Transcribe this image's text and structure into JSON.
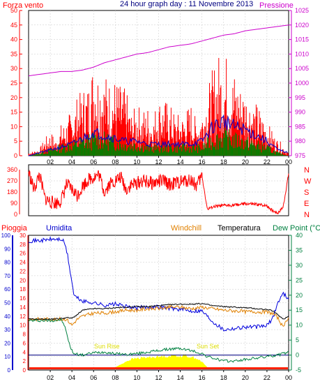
{
  "header": {
    "left_label": "Forza vento",
    "title": "24 hour graph day : 11 Novembre 2013",
    "right_label": "Pressione"
  },
  "legend_bottom": {
    "pioggia": "Pioggia",
    "umidita": "Umidita",
    "windchill": "Windchill",
    "temperatura": "Temperatura",
    "dewpoint": "Dew Point (°C"
  },
  "annotations": {
    "sunrise": "Sun Rise",
    "sunset": "Sun Set"
  },
  "colors": {
    "wind_gust": "#ff0000",
    "wind_avg": "#008000",
    "wind_blue": "#0000cc",
    "pressure": "#cc00cc",
    "direction": "#ff0000",
    "humidity": "#0000dd",
    "windchill": "#e08000",
    "temperature": "#000000",
    "dewpoint": "#008040",
    "rain": "#ffff00",
    "left_axis": "#ff0000",
    "humidity_axis": "#0000cc",
    "dewpoint_axis": "#008040"
  },
  "chart_data": [
    {
      "type": "bar",
      "title": "24 hour graph day : 11 Novembre 2013",
      "x_ticks": [
        "02",
        "04",
        "06",
        "08",
        "10",
        "12",
        "14",
        "16",
        "18",
        "20",
        "22",
        "00"
      ],
      "x_range_hours": [
        0,
        24
      ],
      "y_left_label": "Forza vento",
      "y_left_ticks": [
        "0",
        "5",
        "10",
        "15",
        "20",
        "25",
        "30",
        "35",
        "40",
        "45",
        "50"
      ],
      "ylim_left": [
        0,
        50
      ],
      "y_right_label": "Pressione",
      "y_right_ticks": [
        "975",
        "980",
        "985",
        "990",
        "995",
        "1000",
        "1005",
        "1010",
        "1015",
        "1020",
        "1025"
      ],
      "ylim_right": [
        975,
        1025
      ],
      "gust_profile": {
        "hours": [
          0,
          1,
          1.5,
          2,
          2.5,
          3,
          3.5,
          4,
          4.5,
          5,
          5.5,
          6,
          6.5,
          7,
          7.5,
          8,
          8.5,
          9,
          9.5,
          10,
          10.5,
          11,
          11.5,
          12,
          12.5,
          13,
          13.5,
          14,
          14.5,
          15,
          15.5,
          16,
          16.5,
          17,
          17.5,
          18,
          18.5,
          19,
          19.5,
          20,
          20.5,
          21,
          21.5,
          22,
          22.5,
          23,
          23.5,
          24
        ],
        "values": [
          1,
          2,
          5,
          7,
          5,
          9,
          11,
          13,
          17,
          19,
          22,
          30,
          26,
          24,
          21,
          22,
          20,
          19,
          12,
          15,
          13,
          14,
          11,
          18,
          16,
          15,
          12,
          12,
          13,
          15,
          10,
          14,
          19,
          25,
          29,
          30,
          28,
          24,
          22,
          20,
          17,
          15,
          13,
          10,
          7,
          5,
          3,
          1
        ]
      },
      "avg_profile": {
        "hours": [
          0,
          2,
          3,
          4,
          5,
          6,
          7,
          8,
          9,
          10,
          11,
          12,
          13,
          14,
          15,
          16,
          17,
          18,
          19,
          20,
          21,
          22,
          23,
          24
        ],
        "values": [
          0,
          2,
          3,
          4,
          5,
          6,
          6,
          5,
          4,
          4,
          3,
          3,
          3,
          3,
          3,
          3,
          6,
          7,
          6,
          5,
          4,
          3,
          1,
          0
        ]
      },
      "blue_profile": {
        "hours": [
          0,
          2,
          3,
          4,
          5,
          6,
          7,
          8,
          9,
          10,
          11,
          12,
          13,
          14,
          15,
          16,
          17,
          18,
          19,
          20,
          21,
          22,
          23,
          24
        ],
        "values": [
          0,
          2,
          3,
          4,
          6,
          8,
          7,
          6,
          5,
          5,
          4,
          4,
          4,
          4,
          4,
          5,
          10,
          12,
          10,
          9,
          7,
          5,
          2,
          1
        ]
      },
      "pressure": {
        "hours": [
          0,
          1,
          2,
          3,
          4,
          5,
          6,
          7,
          8,
          9,
          10,
          11,
          12,
          13,
          14,
          15,
          16,
          17,
          18,
          19,
          20,
          21,
          22,
          23,
          24
        ],
        "values": [
          1002.5,
          1003,
          1003.5,
          1004,
          1004,
          1004.5,
          1005.5,
          1007,
          1008,
          1009,
          1010,
          1010.5,
          1011.5,
          1012.5,
          1013,
          1013.5,
          1014.5,
          1015.5,
          1016.5,
          1017,
          1018,
          1018.5,
          1019,
          1019.5,
          1020
        ]
      }
    },
    {
      "type": "line",
      "series_name": "Wind direction",
      "x_range_hours": [
        0,
        24
      ],
      "y_ticks": [
        "0",
        "90",
        "180",
        "270",
        "360"
      ],
      "y_right_ticks": [
        "N",
        "W",
        "S",
        "E",
        "N"
      ],
      "ylim": [
        0,
        360
      ],
      "direction": {
        "hours": [
          0,
          0.5,
          1,
          1.5,
          2,
          2.5,
          3,
          3.5,
          4,
          4.5,
          5,
          5.5,
          6,
          6.5,
          7,
          7.5,
          8,
          8.5,
          9,
          9.5,
          10,
          10.5,
          11,
          11.5,
          12,
          12.5,
          13,
          13.5,
          14,
          14.5,
          15,
          15.5,
          16,
          16.5,
          17,
          18,
          19,
          20,
          21,
          22,
          22.5,
          23,
          23.5,
          24
        ],
        "values": [
          340,
          200,
          320,
          130,
          100,
          90,
          110,
          240,
          200,
          150,
          230,
          280,
          300,
          320,
          180,
          250,
          270,
          300,
          200,
          240,
          250,
          270,
          260,
          250,
          265,
          270,
          240,
          250,
          260,
          270,
          280,
          230,
          310,
          40,
          60,
          70,
          75,
          85,
          80,
          70,
          30,
          10,
          60,
          330
        ]
      }
    },
    {
      "type": "line",
      "x_ticks": [
        "02",
        "04",
        "06",
        "08",
        "10",
        "12",
        "14",
        "16",
        "18",
        "20",
        "22",
        "00"
      ],
      "x_range_hours": [
        0,
        24
      ],
      "rain_ticks": [
        "0",
        "2",
        "4",
        "6",
        "8",
        "10",
        "12",
        "14",
        "16",
        "18",
        "20",
        "22",
        "24",
        "26",
        "28",
        "30"
      ],
      "humidity_ticks": [
        "0",
        "10",
        "20",
        "30",
        "40",
        "50",
        "60",
        "70",
        "80",
        "90",
        "100"
      ],
      "ylim_humidity": [
        0,
        100
      ],
      "temperature_ticks": [
        "-5",
        "0",
        "5",
        "10",
        "15",
        "20",
        "25",
        "30",
        "35",
        "40"
      ],
      "ylim_temperature": [
        -5,
        40
      ],
      "humidity": {
        "hours": [
          0,
          1,
          2,
          3,
          3.3,
          3.6,
          3.9,
          4.2,
          5,
          6,
          7,
          8,
          9,
          10,
          11,
          12,
          13,
          14,
          15,
          16,
          16.5,
          17,
          18,
          19,
          20,
          21,
          22,
          22.5,
          23,
          23.5,
          24
        ],
        "values": [
          96,
          96,
          97,
          97,
          95,
          85,
          70,
          55,
          51,
          50,
          48,
          49,
          47,
          46,
          47,
          47,
          46,
          45,
          44,
          44,
          40,
          36,
          30,
          31,
          32,
          32,
          33,
          38,
          50,
          57,
          53
        ]
      },
      "temperature": {
        "hours": [
          0,
          1,
          2,
          3,
          3.5,
          4,
          4.5,
          5,
          6,
          7,
          8,
          9,
          10,
          11,
          12,
          13,
          14,
          15,
          16,
          17,
          18,
          19,
          20,
          21,
          22,
          22.5,
          23,
          23.5,
          24
        ],
        "values": [
          12,
          12,
          12,
          12.2,
          12.5,
          12.3,
          13.5,
          15,
          15.5,
          15.5,
          15.8,
          16,
          16.2,
          16.2,
          16.5,
          16.8,
          17,
          17,
          17.2,
          16.5,
          16.2,
          16,
          15.8,
          15.5,
          15.2,
          14.8,
          13.5,
          12,
          13
        ]
      },
      "windchill": {
        "hours": [
          0,
          1,
          2,
          3,
          3.5,
          4,
          4.5,
          5,
          6,
          7,
          8,
          9,
          10,
          11,
          12,
          13,
          14,
          15,
          16,
          17,
          18,
          19,
          20,
          21,
          22,
          22.5,
          23,
          23.5,
          24
        ],
        "values": [
          12,
          12,
          12,
          12,
          12,
          10,
          12,
          13,
          14,
          14,
          14.5,
          15,
          15,
          15.5,
          15.5,
          16,
          16,
          15.5,
          16,
          15.5,
          15,
          14.8,
          14.5,
          14.5,
          14.3,
          14,
          12.5,
          9,
          13
        ]
      },
      "dewpoint": {
        "hours": [
          0,
          1,
          2,
          3,
          3.3,
          3.6,
          3.9,
          4.2,
          5,
          6,
          7,
          8,
          9,
          10,
          11,
          12,
          13,
          14,
          15,
          16,
          16.5,
          17,
          18,
          19,
          20,
          21,
          22,
          23,
          24
        ],
        "values": [
          11.5,
          11.5,
          11.5,
          11.8,
          10,
          6,
          2,
          0.5,
          0,
          0.8,
          1,
          0.5,
          0.2,
          0.5,
          1,
          1.5,
          2,
          2.2,
          1.5,
          0.5,
          -0.5,
          -1,
          -2,
          -2,
          -1.5,
          -1,
          -0.5,
          0,
          1
        ]
      },
      "rain": {
        "hours": [
          8,
          8.5,
          9,
          9.5,
          10,
          10.5,
          11,
          11.5,
          12,
          12.5,
          13,
          13.5,
          14,
          14.5,
          15,
          15.5,
          16,
          16.5
        ],
        "values": [
          0,
          0.6,
          1.3,
          1.8,
          2,
          2.1,
          2.2,
          2.3,
          2.3,
          2.5,
          2.5,
          2.6,
          2.5,
          2.6,
          2.3,
          2,
          1.2,
          0
        ]
      }
    }
  ]
}
